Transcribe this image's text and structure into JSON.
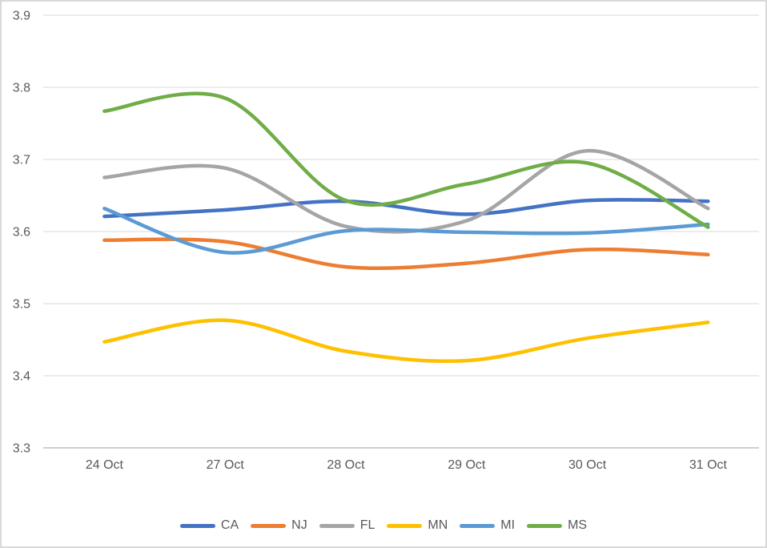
{
  "chart_data": {
    "type": "line",
    "title": "",
    "xlabel": "",
    "ylabel": "",
    "categories": [
      "24 Oct",
      "27 Oct",
      "28 Oct",
      "29 Oct",
      "30 Oct",
      "31 Oct"
    ],
    "series": [
      {
        "name": "CA",
        "color": "#4472C4",
        "values": [
          3.621,
          3.63,
          3.642,
          3.624,
          3.643,
          3.642
        ]
      },
      {
        "name": "NJ",
        "color": "#ED7D31",
        "values": [
          3.588,
          3.586,
          3.551,
          3.556,
          3.575,
          3.568
        ]
      },
      {
        "name": "FL",
        "color": "#A5A5A5",
        "values": [
          3.675,
          3.688,
          3.607,
          3.615,
          3.712,
          3.632
        ]
      },
      {
        "name": "MN",
        "color": "#FFC000",
        "values": [
          3.447,
          3.477,
          3.434,
          3.421,
          3.452,
          3.474
        ]
      },
      {
        "name": "MI",
        "color": "#5B9BD5",
        "values": [
          3.632,
          3.571,
          3.601,
          3.599,
          3.598,
          3.61
        ]
      },
      {
        "name": "MS",
        "color": "#70AD47",
        "values": [
          3.767,
          3.785,
          3.643,
          3.666,
          3.695,
          3.606
        ]
      }
    ],
    "ylim": [
      3.3,
      3.9
    ],
    "ytick_step": 0.1,
    "ytick_labels": [
      "3.3",
      "3.4",
      "3.5",
      "3.6",
      "3.7",
      "3.8",
      "3.9"
    ],
    "grid": true,
    "line_style": "smooth",
    "legend_position": "bottom",
    "legend_entries": [
      "CA",
      "NJ",
      "FL",
      "MN",
      "MI",
      "MS"
    ],
    "colors": {
      "axis_text": "#595959",
      "gridline": "#D9D9D9",
      "axis_line": "#BFBFBF",
      "frame_border": "#D9D9D9",
      "background": "#FFFFFF"
    }
  }
}
